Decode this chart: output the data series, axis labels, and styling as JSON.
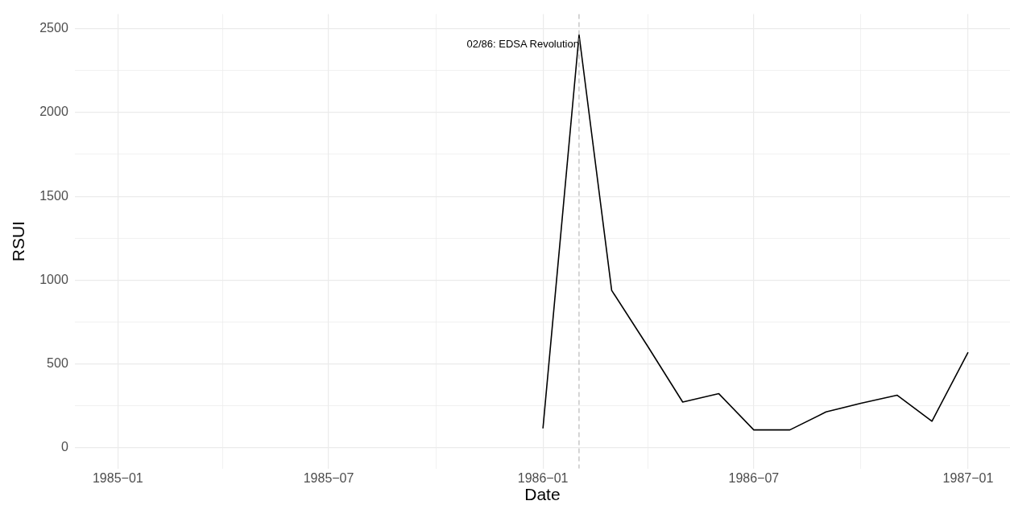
{
  "chart_data": {
    "type": "line",
    "xlabel": "Date",
    "ylabel": "RSUI",
    "x": [
      "1986-01",
      "1986-02",
      "1986-03",
      "1986-04",
      "1986-05",
      "1986-06",
      "1986-07",
      "1986-08",
      "1986-09",
      "1986-10",
      "1986-11",
      "1986-12",
      "1987-01"
    ],
    "series": [
      {
        "color": "#000000",
        "values": [
          116,
          2463,
          939,
          605,
          273,
          323,
          107,
          107,
          214,
          266,
          314,
          159,
          570
        ]
      }
    ],
    "xlim": [
      "1984-11-25",
      "1987-02-06"
    ],
    "xticks": [
      {
        "value": "1985-01",
        "label": "1985−01"
      },
      {
        "value": "1985-04",
        "label": null
      },
      {
        "value": "1985-07",
        "label": "1985−07"
      },
      {
        "value": "1985-10",
        "label": null
      },
      {
        "value": "1986-01",
        "label": "1986−01"
      },
      {
        "value": "1986-04",
        "label": null
      },
      {
        "value": "1986-07",
        "label": "1986−07"
      },
      {
        "value": "1986-10",
        "label": null
      },
      {
        "value": "1987-01",
        "label": "1987−01"
      }
    ],
    "ylim": [
      -123,
      2586
    ],
    "yticks": [
      0,
      {
        "value": 250,
        "label": null
      },
      500,
      {
        "value": 750,
        "label": null
      },
      1000,
      {
        "value": 1250,
        "label": null
      },
      1500,
      {
        "value": 1750,
        "label": null
      },
      2000,
      {
        "value": 2250,
        "label": null
      },
      2500
    ],
    "ref_lines": [
      {
        "axis": "x",
        "value": "1986-02",
        "label": "02/86: EDSA Revolution",
        "color": "#aaaaaa",
        "line_style": "dashed"
      }
    ],
    "grid": true,
    "legend": false,
    "marker": "none",
    "line_style": "solid"
  }
}
